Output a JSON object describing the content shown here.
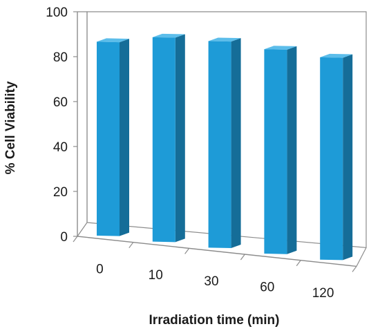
{
  "chart_data": {
    "type": "bar",
    "style": "3d-column",
    "categories": [
      "0",
      "10",
      "30",
      "60",
      "120"
    ],
    "values": [
      92,
      97,
      98,
      97,
      96
    ],
    "xlabel": "Irradiation time (min)",
    "ylabel": "% Cell Viability",
    "ylim": [
      0,
      100
    ],
    "yticks": [
      "0",
      "20",
      "40",
      "60",
      "80",
      "100"
    ],
    "grid": false,
    "legend": "none",
    "colors": {
      "bar_front": "#1e9bd7",
      "bar_side": "#156d98",
      "bar_top": "#5cbdea",
      "axis": "#8c8c8c"
    }
  }
}
